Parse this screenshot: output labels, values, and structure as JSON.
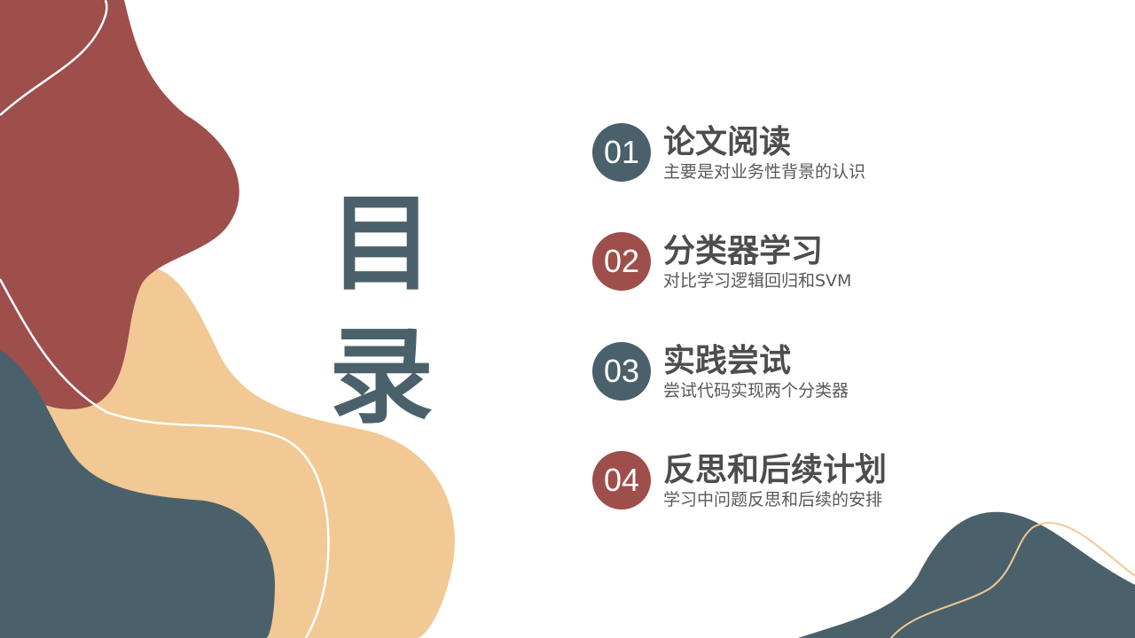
{
  "colors": {
    "accent_red": "#9e4e4b",
    "accent_slate": "#4a616b",
    "accent_peach": "#f2c994",
    "text_dark": "#4d4d4d",
    "text_sub": "#595959"
  },
  "title_chars": [
    "目",
    "录"
  ],
  "items": [
    {
      "number": "01",
      "title": "论文阅读",
      "subtitle": "主要是对业务性背景的认识",
      "badge_color": "#4a616b"
    },
    {
      "number": "02",
      "title": "分类器学习",
      "subtitle": "对比学习逻辑回归和SVM",
      "badge_color": "#9e4e4b"
    },
    {
      "number": "03",
      "title": "实践尝试",
      "subtitle": "尝试代码实现两个分类器",
      "badge_color": "#4a616b"
    },
    {
      "number": "04",
      "title": "反思和后续计划",
      "subtitle": "学习中问题反思和后续的安排",
      "badge_color": "#9e4e4b"
    }
  ]
}
